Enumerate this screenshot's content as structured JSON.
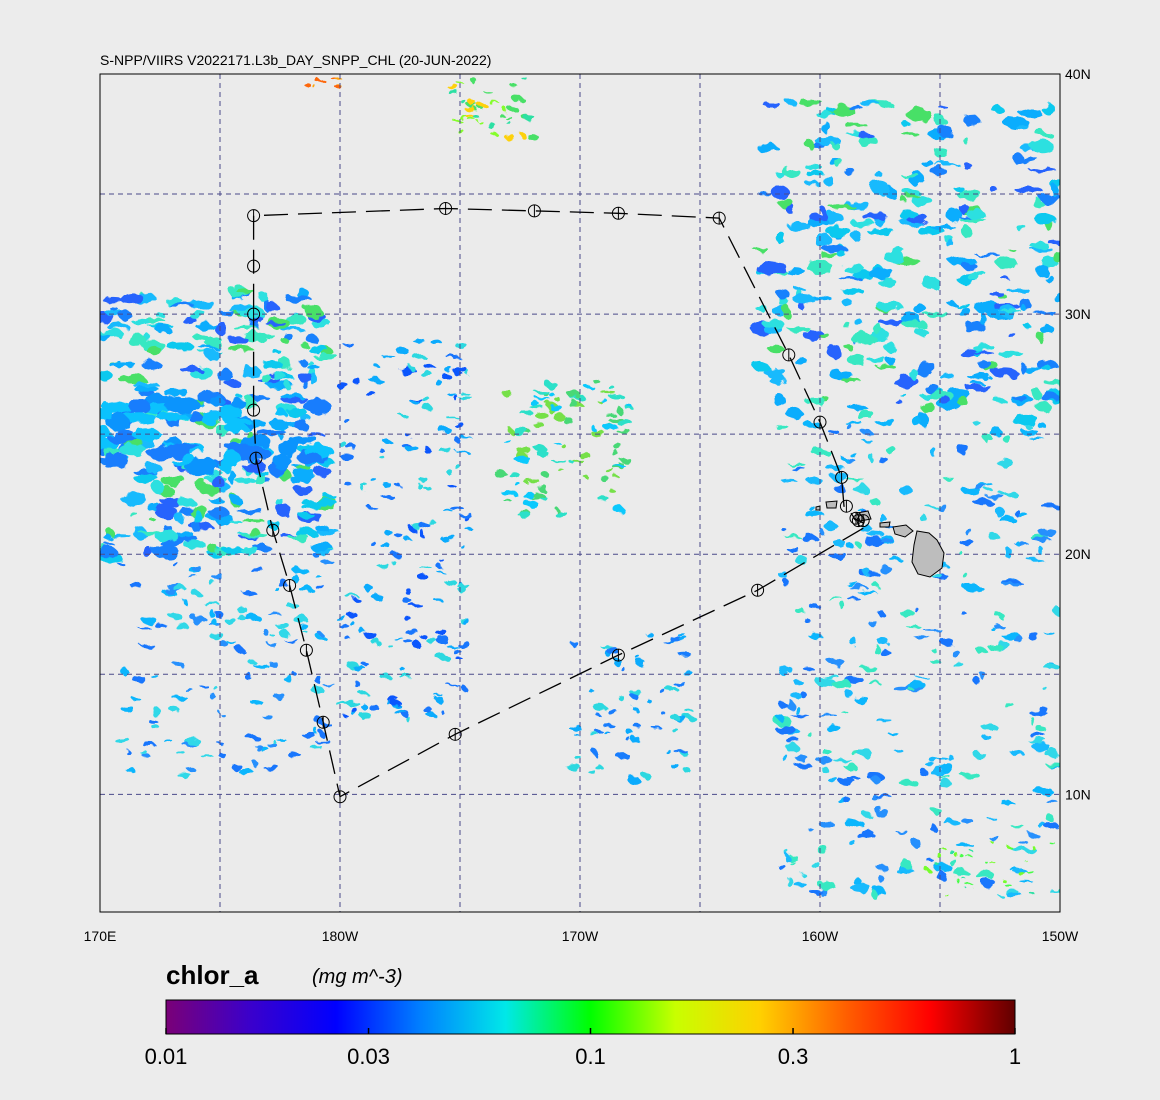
{
  "title": "S-NPP/VIIRS V2022171.L3b_DAY_SNPP_CHL (20-JUN-2022)",
  "axes": {
    "lon_ticks": [
      {
        "label": "170E",
        "lon": 170
      },
      {
        "label": "180W",
        "lon": 180
      },
      {
        "label": "170W",
        "lon": 190
      },
      {
        "label": "160W",
        "lon": 200
      },
      {
        "label": "150W",
        "lon": 210
      }
    ],
    "lat_ticks": [
      {
        "label": "40N",
        "lat": 40
      },
      {
        "label": "30N",
        "lat": 30
      },
      {
        "label": "20N",
        "lat": 20
      },
      {
        "label": "10N",
        "lat": 10
      }
    ],
    "lon_range": [
      170,
      210
    ],
    "lat_range": [
      5.1,
      40
    ],
    "grid_lons": [
      175,
      180,
      185,
      190,
      195,
      200,
      205
    ],
    "grid_lats": [
      35,
      30,
      25,
      20,
      15,
      10
    ]
  },
  "colorbar": {
    "variable": "chlor_a",
    "units": "(mg m^-3)",
    "scale": "log",
    "range": [
      0.01,
      1
    ],
    "ticks": [
      "0.01",
      "0.03",
      "0.1",
      "0.3",
      "1"
    ],
    "tick_values": [
      0.01,
      0.03,
      0.1,
      0.3,
      1
    ],
    "colors": [
      "#7a0077",
      "#3a00cc",
      "#0000ff",
      "#0080ff",
      "#00e8e8",
      "#00ff00",
      "#c8ff00",
      "#ffd000",
      "#ff6000",
      "#ff0000",
      "#600000"
    ]
  },
  "cruise_track": [
    [
      176.4,
      34.1
    ],
    [
      176.4,
      32.0
    ],
    [
      176.4,
      30.0
    ],
    [
      176.4,
      26.0
    ],
    [
      176.5,
      24.0
    ],
    [
      177.2,
      21.0
    ],
    [
      177.9,
      18.7
    ],
    [
      178.6,
      16.0
    ],
    [
      179.3,
      13.0
    ],
    [
      180.0,
      9.9
    ],
    [
      184.8,
      12.5
    ],
    [
      191.6,
      15.8
    ],
    [
      197.4,
      18.5
    ],
    [
      202.0,
      21.2
    ],
    [
      201.6,
      21.4
    ],
    [
      201.4,
      21.5
    ],
    [
      201.5,
      21.4
    ],
    [
      201.1,
      22.0
    ],
    [
      201.0,
      22.0
    ],
    [
      200.9,
      23.2
    ],
    [
      200.0,
      25.5
    ],
    [
      198.7,
      28.3
    ],
    [
      195.8,
      34.0
    ],
    [
      191.6,
      34.2
    ],
    [
      188.1,
      34.3
    ],
    [
      184.4,
      34.4
    ],
    [
      176.4,
      34.1
    ]
  ],
  "stations": [
    [
      176.4,
      34.1
    ],
    [
      176.4,
      32.0
    ],
    [
      176.4,
      30.0
    ],
    [
      176.4,
      26.0
    ],
    [
      176.5,
      24.0
    ],
    [
      177.2,
      21.0
    ],
    [
      177.9,
      18.7
    ],
    [
      178.6,
      16.0
    ],
    [
      179.3,
      13.0
    ],
    [
      180.0,
      9.9
    ],
    [
      184.8,
      12.5
    ],
    [
      191.6,
      15.8
    ],
    [
      197.4,
      18.5
    ],
    [
      201.1,
      22.0
    ],
    [
      200.9,
      23.2
    ],
    [
      200.0,
      25.5
    ],
    [
      198.7,
      28.3
    ],
    [
      195.8,
      34.0
    ],
    [
      191.6,
      34.2
    ],
    [
      188.1,
      34.3
    ],
    [
      184.4,
      34.4
    ],
    [
      201.6,
      21.4
    ],
    [
      201.8,
      21.4
    ],
    [
      201.5,
      21.5
    ]
  ]
}
